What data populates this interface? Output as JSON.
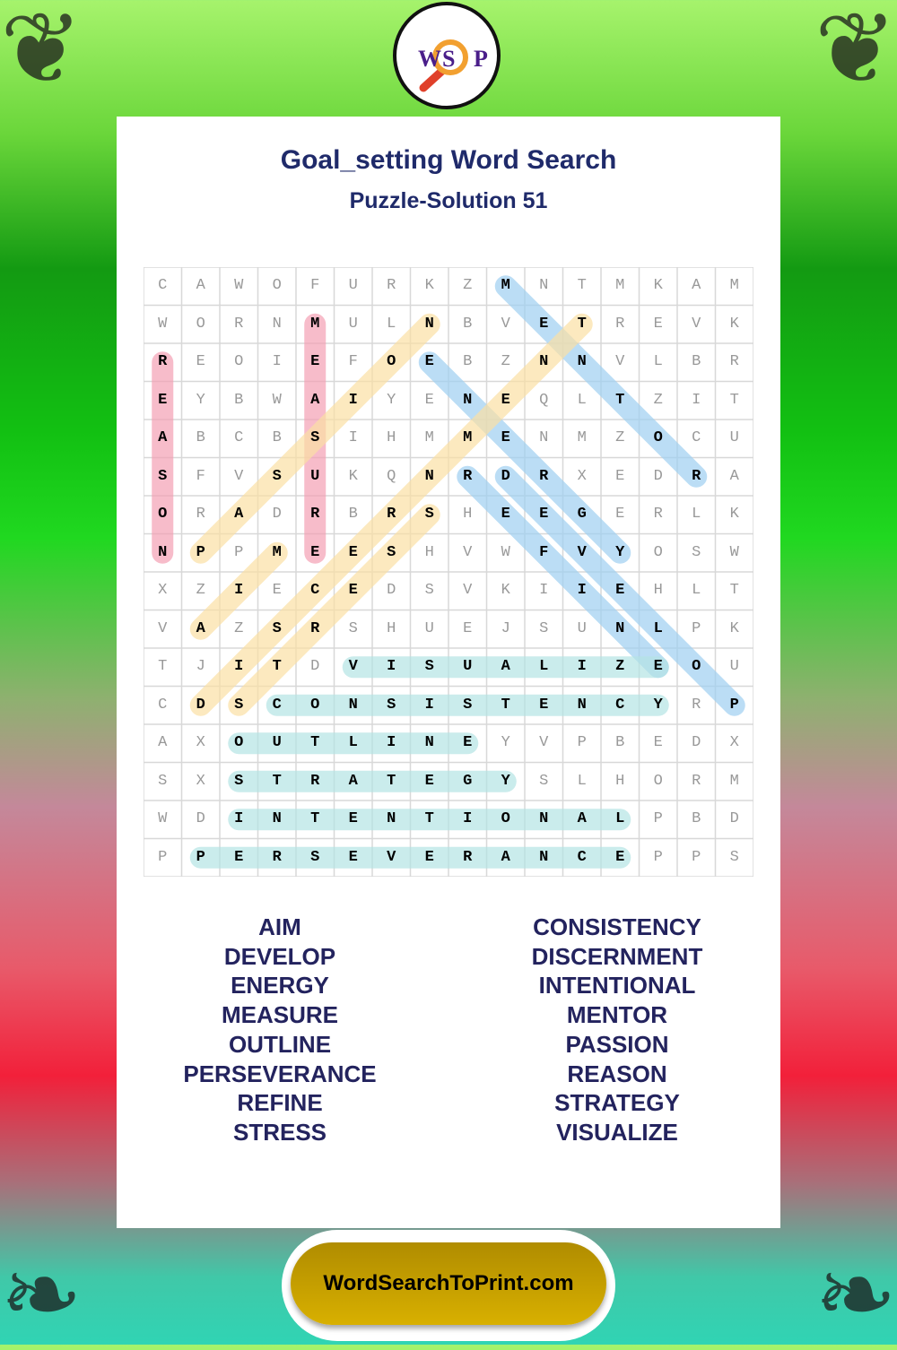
{
  "logo": {
    "letters": [
      "W",
      "S",
      "P"
    ],
    "icon": "magnifier-icon"
  },
  "title": "Goal_setting Word Search",
  "subtitle": "Puzzle-Solution 51",
  "grid": [
    "CAWOFURKZMNTMKAM",
    "WORNMULNBVETREVK",
    "REOIEFOEBZNNVLBR",
    "EYBWAIYENEQLTZIT",
    "ABCBSIHMMENMZOCU",
    "SFVSUKQNRDRXEDRA",
    "ORADRBRSHEEGERLK",
    "NPPMEESHVWFVYOSW",
    "XZIECEDSVKIIEHLT",
    "VAZSRSHUEJSUNLPK",
    "TJITDVISUALIZEOU",
    "CDSCONSISTENCYRP",
    "AXOUTLINEYVPBEDX",
    "SXSTRATEGYSLHORM",
    "WDINTENTIONALPBD",
    "PPERSEVERANCEPPS"
  ],
  "solutions": [
    {
      "word": "REASON",
      "start": [
        2,
        0
      ],
      "end": [
        7,
        0
      ],
      "color": "#f4a0b4"
    },
    {
      "word": "MEASURE",
      "start": [
        1,
        4
      ],
      "end": [
        7,
        4
      ],
      "color": "#f4a0b4"
    },
    {
      "word": "MENTOR",
      "start": [
        0,
        9
      ],
      "end": [
        5,
        14
      ],
      "color": "#9fd0f2"
    },
    {
      "word": "ENERGY",
      "start": [
        2,
        7
      ],
      "end": [
        7,
        12
      ],
      "color": "#9fd0f2"
    },
    {
      "word": "REFINE",
      "start": [
        5,
        8
      ],
      "end": [
        10,
        13
      ],
      "color": "#9fd0f2"
    },
    {
      "word": "DEVELOP",
      "start": [
        5,
        9
      ],
      "end": [
        11,
        15
      ],
      "color": "#9fd0f2"
    },
    {
      "word": "PASSION",
      "start": [
        7,
        1
      ],
      "end": [
        1,
        7
      ],
      "color": "#fbe0a4"
    },
    {
      "word": "DISCERNMENT",
      "start": [
        11,
        1
      ],
      "end": [
        1,
        11
      ],
      "color": "#fbe0a4"
    },
    {
      "word": "AIM",
      "start": [
        9,
        1
      ],
      "end": [
        7,
        3
      ],
      "color": "#fbe0a4"
    },
    {
      "word": "STRESS",
      "start": [
        11,
        2
      ],
      "end": [
        6,
        7
      ],
      "color": "#fbe0a4"
    },
    {
      "word": "VISUALIZE",
      "start": [
        10,
        5
      ],
      "end": [
        10,
        13
      ],
      "color": "#b4e4e4"
    },
    {
      "word": "CONSISTENCY",
      "start": [
        11,
        3
      ],
      "end": [
        11,
        13
      ],
      "color": "#b4e4e4"
    },
    {
      "word": "OUTLINE",
      "start": [
        12,
        2
      ],
      "end": [
        12,
        8
      ],
      "color": "#b4e4e4"
    },
    {
      "word": "STRATEGY",
      "start": [
        13,
        2
      ],
      "end": [
        13,
        9
      ],
      "color": "#b4e4e4"
    },
    {
      "word": "INTENTIONAL",
      "start": [
        14,
        2
      ],
      "end": [
        14,
        12
      ],
      "color": "#b4e4e4"
    },
    {
      "word": "PERSEVERANCE",
      "start": [
        15,
        1
      ],
      "end": [
        15,
        12
      ],
      "color": "#b4e4e4"
    }
  ],
  "word_list": {
    "left": [
      "AIM",
      "DEVELOP",
      "ENERGY",
      "MEASURE",
      "OUTLINE",
      "PERSEVERANCE",
      "REFINE",
      "STRESS"
    ],
    "right": [
      "CONSISTENCY",
      "DISCERNMENT",
      "INTENTIONAL",
      "MENTOR",
      "PASSION",
      "REASON",
      "STRATEGY",
      "VISUALIZE"
    ]
  },
  "footer": {
    "label": "WordSearchToPrint.com"
  }
}
